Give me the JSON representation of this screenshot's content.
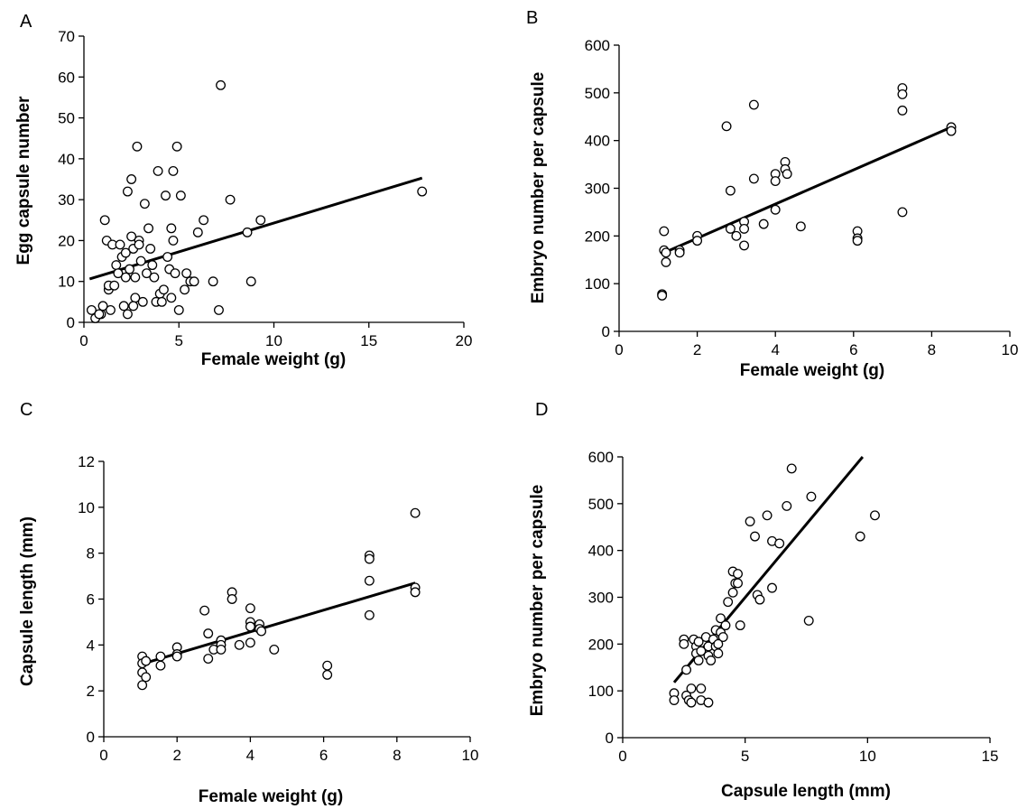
{
  "chart_data": [
    {
      "panel": "A",
      "type": "scatter",
      "xlabel": "Female weight (g)",
      "ylabel": "Egg capsule number",
      "xlim": [
        0,
        20
      ],
      "ylim": [
        0,
        70
      ],
      "xticks": [
        0,
        5,
        10,
        15,
        20
      ],
      "yticks": [
        0,
        10,
        20,
        30,
        40,
        50,
        60,
        70
      ],
      "points": [
        [
          0.4,
          3
        ],
        [
          0.6,
          1
        ],
        [
          0.9,
          2
        ],
        [
          1.0,
          4
        ],
        [
          1.1,
          25
        ],
        [
          1.2,
          20
        ],
        [
          1.3,
          8
        ],
        [
          1.3,
          9
        ],
        [
          1.4,
          3
        ],
        [
          1.5,
          19
        ],
        [
          1.7,
          14
        ],
        [
          1.8,
          12
        ],
        [
          1.9,
          19
        ],
        [
          2.0,
          16
        ],
        [
          2.1,
          4
        ],
        [
          2.2,
          11
        ],
        [
          2.2,
          17
        ],
        [
          2.3,
          2
        ],
        [
          2.3,
          32
        ],
        [
          2.4,
          13
        ],
        [
          2.5,
          35
        ],
        [
          2.5,
          21
        ],
        [
          2.6,
          18
        ],
        [
          2.7,
          6
        ],
        [
          2.7,
          11
        ],
        [
          2.8,
          43
        ],
        [
          2.9,
          20
        ],
        [
          2.9,
          19
        ],
        [
          3.0,
          15
        ],
        [
          3.1,
          5
        ],
        [
          3.2,
          29
        ],
        [
          3.3,
          12
        ],
        [
          3.4,
          23
        ],
        [
          3.5,
          18
        ],
        [
          3.7,
          11
        ],
        [
          3.8,
          5
        ],
        [
          3.9,
          37
        ],
        [
          4.0,
          7
        ],
        [
          4.1,
          5
        ],
        [
          4.3,
          31
        ],
        [
          4.4,
          16
        ],
        [
          4.5,
          13
        ],
        [
          4.6,
          23
        ],
        [
          4.6,
          6
        ],
        [
          4.7,
          37
        ],
        [
          4.7,
          20
        ],
        [
          4.8,
          12
        ],
        [
          4.9,
          43
        ],
        [
          5.0,
          3
        ],
        [
          5.1,
          31
        ],
        [
          5.3,
          8
        ],
        [
          5.4,
          12
        ],
        [
          5.6,
          10
        ],
        [
          5.8,
          10
        ],
        [
          6.0,
          22
        ],
        [
          6.3,
          25
        ],
        [
          6.8,
          10
        ],
        [
          7.1,
          3
        ],
        [
          7.2,
          58
        ],
        [
          7.7,
          30
        ],
        [
          8.6,
          22
        ],
        [
          8.8,
          10
        ],
        [
          9.3,
          25
        ],
        [
          17.8,
          32
        ],
        [
          0.8,
          2
        ],
        [
          1.6,
          9
        ],
        [
          2.6,
          4
        ],
        [
          3.6,
          14
        ],
        [
          4.2,
          8
        ]
      ],
      "fit": [
        [
          0.3,
          10.6
        ],
        [
          17.8,
          35.3
        ]
      ]
    },
    {
      "panel": "B",
      "type": "scatter",
      "xlabel": "Female weight (g)",
      "ylabel": "Embryo number per capsule",
      "xlim": [
        0,
        10
      ],
      "ylim": [
        0,
        600
      ],
      "xticks": [
        0,
        2,
        4,
        6,
        8,
        10
      ],
      "yticks": [
        0,
        100,
        200,
        300,
        400,
        500,
        600
      ],
      "points": [
        [
          1.1,
          78
        ],
        [
          1.1,
          75
        ],
        [
          1.15,
          210
        ],
        [
          1.15,
          170
        ],
        [
          1.2,
          145
        ],
        [
          1.2,
          165
        ],
        [
          1.55,
          170
        ],
        [
          1.55,
          165
        ],
        [
          2.0,
          200
        ],
        [
          2.0,
          190
        ],
        [
          2.75,
          430
        ],
        [
          2.85,
          295
        ],
        [
          2.85,
          215
        ],
        [
          3.0,
          200
        ],
        [
          3.2,
          230
        ],
        [
          3.2,
          215
        ],
        [
          3.2,
          180
        ],
        [
          3.45,
          320
        ],
        [
          3.45,
          475
        ],
        [
          3.7,
          225
        ],
        [
          4.0,
          330
        ],
        [
          4.0,
          315
        ],
        [
          4.0,
          255
        ],
        [
          4.25,
          355
        ],
        [
          4.25,
          340
        ],
        [
          4.3,
          330
        ],
        [
          4.65,
          220
        ],
        [
          6.1,
          210
        ],
        [
          6.1,
          195
        ],
        [
          6.1,
          190
        ],
        [
          7.25,
          510
        ],
        [
          7.25,
          497
        ],
        [
          7.25,
          463
        ],
        [
          7.25,
          250
        ],
        [
          8.5,
          428
        ],
        [
          8.5,
          420
        ]
      ],
      "fit": [
        [
          1.1,
          163
        ],
        [
          8.5,
          428
        ]
      ]
    },
    {
      "panel": "C",
      "type": "scatter",
      "xlabel": "Female weight (g)",
      "ylabel": "Capsule length (mm)",
      "xlim": [
        0,
        10
      ],
      "ylim": [
        0,
        12
      ],
      "xticks": [
        0,
        2,
        4,
        6,
        8,
        10
      ],
      "yticks": [
        0,
        2,
        4,
        6,
        8,
        10,
        12
      ],
      "points": [
        [
          1.05,
          3.5
        ],
        [
          1.05,
          3.2
        ],
        [
          1.05,
          2.8
        ],
        [
          1.05,
          2.25
        ],
        [
          1.15,
          2.6
        ],
        [
          1.15,
          3.3
        ],
        [
          1.55,
          3.5
        ],
        [
          1.55,
          3.1
        ],
        [
          2.0,
          3.9
        ],
        [
          2.0,
          3.6
        ],
        [
          2.0,
          3.5
        ],
        [
          2.75,
          5.5
        ],
        [
          2.85,
          4.5
        ],
        [
          2.85,
          3.4
        ],
        [
          3.0,
          3.8
        ],
        [
          3.2,
          4.2
        ],
        [
          3.2,
          4.0
        ],
        [
          3.2,
          3.8
        ],
        [
          3.5,
          6.3
        ],
        [
          3.5,
          6.0
        ],
        [
          3.7,
          4.0
        ],
        [
          4.0,
          5.6
        ],
        [
          4.0,
          5.0
        ],
        [
          4.0,
          4.8
        ],
        [
          4.0,
          4.1
        ],
        [
          4.25,
          4.9
        ],
        [
          4.25,
          4.7
        ],
        [
          4.3,
          4.6
        ],
        [
          4.65,
          3.8
        ],
        [
          6.1,
          3.1
        ],
        [
          6.1,
          2.7
        ],
        [
          7.25,
          7.9
        ],
        [
          7.25,
          7.75
        ],
        [
          7.25,
          6.8
        ],
        [
          7.25,
          5.3
        ],
        [
          8.5,
          9.75
        ],
        [
          8.5,
          6.5
        ],
        [
          8.5,
          6.3
        ]
      ],
      "fit": [
        [
          1.1,
          3.2
        ],
        [
          8.5,
          6.7
        ]
      ]
    },
    {
      "panel": "D",
      "type": "scatter",
      "xlabel": "Capsule length (mm)",
      "ylabel": "Embryo number per capsule",
      "xlim": [
        0,
        15
      ],
      "ylim": [
        0,
        600
      ],
      "xticks": [
        0,
        5,
        10,
        15
      ],
      "yticks": [
        0,
        100,
        200,
        300,
        400,
        500,
        600
      ],
      "points": [
        [
          2.1,
          95
        ],
        [
          2.1,
          80
        ],
        [
          2.5,
          210
        ],
        [
          2.5,
          200
        ],
        [
          2.6,
          145
        ],
        [
          2.6,
          90
        ],
        [
          2.7,
          80
        ],
        [
          2.8,
          105
        ],
        [
          2.8,
          75
        ],
        [
          2.9,
          210
        ],
        [
          3.0,
          195
        ],
        [
          3.0,
          180
        ],
        [
          3.1,
          205
        ],
        [
          3.1,
          165
        ],
        [
          3.2,
          185
        ],
        [
          3.2,
          105
        ],
        [
          3.2,
          80
        ],
        [
          3.4,
          215
        ],
        [
          3.5,
          195
        ],
        [
          3.5,
          175
        ],
        [
          3.5,
          75
        ],
        [
          3.6,
          165
        ],
        [
          3.7,
          210
        ],
        [
          3.8,
          230
        ],
        [
          3.8,
          195
        ],
        [
          3.9,
          180
        ],
        [
          4.0,
          255
        ],
        [
          4.0,
          225
        ],
        [
          4.1,
          215
        ],
        [
          4.3,
          290
        ],
        [
          4.5,
          355
        ],
        [
          4.5,
          310
        ],
        [
          4.6,
          330
        ],
        [
          4.7,
          350
        ],
        [
          4.7,
          330
        ],
        [
          4.8,
          240
        ],
        [
          5.2,
          462
        ],
        [
          5.4,
          430
        ],
        [
          5.5,
          305
        ],
        [
          5.6,
          295
        ],
        [
          5.9,
          475
        ],
        [
          6.1,
          420
        ],
        [
          6.1,
          320
        ],
        [
          6.4,
          415
        ],
        [
          6.7,
          495
        ],
        [
          6.9,
          575
        ],
        [
          7.6,
          250
        ],
        [
          7.7,
          515
        ],
        [
          9.7,
          430
        ],
        [
          10.3,
          475
        ],
        [
          4.2,
          240
        ],
        [
          3.9,
          200
        ]
      ],
      "fit": [
        [
          2.1,
          118
        ],
        [
          9.8,
          600
        ]
      ]
    }
  ],
  "panel_labels": [
    "A",
    "B",
    "C",
    "D"
  ]
}
